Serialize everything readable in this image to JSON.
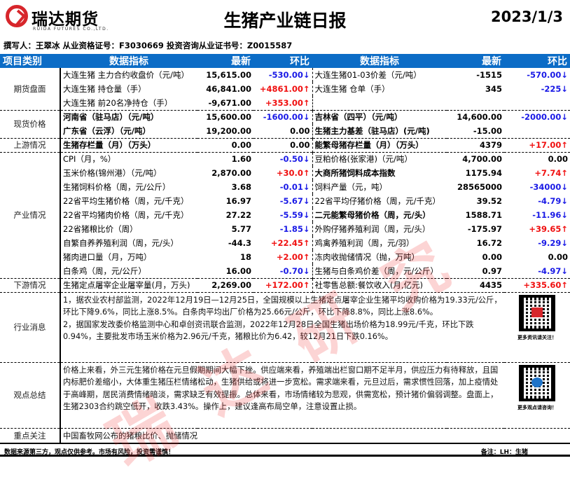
{
  "header": {
    "brand": "瑞达期货",
    "brand_en": "RUIDA FUTURES CO.,LTD.",
    "title": "生猪产业链日报",
    "date": "2023/1/3",
    "author": "撰写人：王翠冰  从业资格证号：F3030669   投资咨询从业证书号：Z0015587"
  },
  "columns": [
    "项目类别",
    "数据指标",
    "最新",
    "环比",
    "数据指标",
    "最新",
    "环比"
  ],
  "colors": {
    "header_bg": "#0c6cc6",
    "up": "#f01010",
    "down": "#1a1ae6",
    "brand": "#d7262b"
  },
  "sections": [
    {
      "category": "期货盘面",
      "rows": [
        {
          "l": {
            "name": "大连生猪 主力合约收盘价（元/吨）",
            "latest": "15,615.00",
            "change": "-530.00↓",
            "dir": "down"
          },
          "r": {
            "name": "大连生猪01-03价差（元/吨）",
            "latest": "-1515",
            "change": "-570.00↓",
            "dir": "down"
          }
        },
        {
          "l": {
            "name": "大连生猪 持仓量（手）",
            "latest": "46,841.00",
            "change": "+4861.00↑",
            "dir": "up"
          },
          "r": {
            "name": "大连生猪 仓单（手）",
            "latest": "345",
            "change": "-225↓",
            "dir": "down"
          }
        },
        {
          "l": {
            "name": "大连生猪 前20名净持仓（手）",
            "latest": "-9,671.00",
            "change": "+353.00↑",
            "dir": "up"
          },
          "r": {
            "name": "",
            "latest": "",
            "change": "",
            "dir": "flat"
          }
        }
      ]
    },
    {
      "category": "现货价格",
      "rows": [
        {
          "l": {
            "name": "河南省（驻马店）（元/吨）",
            "latest": "15,600.00",
            "change": "-1600.00↓",
            "dir": "down",
            "bold": true
          },
          "r": {
            "name": "吉林省（四平）（元/吨）",
            "latest": "14,600.00",
            "change": "-2000.00↓",
            "dir": "down",
            "bold": true
          }
        },
        {
          "l": {
            "name": "广东省（云浮）（元/吨）",
            "latest": "19,200.00",
            "change": "0.00",
            "dir": "flat",
            "bold": true
          },
          "r": {
            "name": "生猪主力基差（驻马店）(元/吨)",
            "latest": "-15.00",
            "change": "",
            "dir": "flat",
            "bold": true
          }
        }
      ]
    },
    {
      "category": "上游情况",
      "rows": [
        {
          "l": {
            "name": "生猪存栏量（月）（万头）",
            "latest": "0.00",
            "change": "0.00",
            "dir": "flat",
            "bold": true
          },
          "r": {
            "name": "能繁母猪存栏量（月）（万头）",
            "latest": "4379",
            "change": "+17.00↑",
            "dir": "up",
            "bold": true
          }
        }
      ]
    },
    {
      "category": "产业情况",
      "rows": [
        {
          "l": {
            "name": "CPI（月，%）",
            "latest": "1.60",
            "change": "-0.50↓",
            "dir": "down"
          },
          "r": {
            "name": "豆粕价格(张家港)（元/吨）",
            "latest": "4,700.00",
            "change": "0.00",
            "dir": "flat"
          }
        },
        {
          "l": {
            "name": "玉米价格(锦州港）（元/吨）",
            "latest": "2,870.00",
            "change": "+30.0↑",
            "dir": "up"
          },
          "r": {
            "name": "大商所猪饲料成本指数",
            "latest": "1175.94",
            "change": "+7.74↑",
            "dir": "up",
            "bold": true
          }
        },
        {
          "l": {
            "name": "生猪饲料价格（周，元/公斤）",
            "latest": "3.68",
            "change": "-0.01↓",
            "dir": "down"
          },
          "r": {
            "name": "饲料产量（元，吨）",
            "latest": "28565000",
            "change": "-34000↓",
            "dir": "down"
          }
        },
        {
          "l": {
            "name": "22省平均生猪价格（周，元/千克）",
            "latest": "16.97",
            "change": "-5.67↓",
            "dir": "down"
          },
          "r": {
            "name": "22省平均仔猪价格（周，元/千克）",
            "latest": "39.52",
            "change": "-4.79↓",
            "dir": "down"
          }
        },
        {
          "l": {
            "name": "22省平均猪肉价格（周，元/千克）",
            "latest": "27.22",
            "change": "-5.59↓",
            "dir": "down"
          },
          "r": {
            "name": "二元能繁母猪价格（周，元/头）",
            "latest": "1588.71",
            "change": "-11.96↓",
            "dir": "down",
            "bold": true
          }
        },
        {
          "l": {
            "name": "22省猪粮比价（周）",
            "latest": "5.77",
            "change": "-1.85↓",
            "dir": "down"
          },
          "r": {
            "name": "外购仔猪养殖利润（周，元/头）",
            "latest": "-175.97",
            "change": "+39.65↑",
            "dir": "up"
          }
        },
        {
          "l": {
            "name": "自繁自养养殖利润（周，元/头）",
            "latest": "-44.3",
            "change": "+22.45↑",
            "dir": "up"
          },
          "r": {
            "name": "鸡禽养殖利润（周，元/羽）",
            "latest": "16.72",
            "change": "-9.29↓",
            "dir": "down"
          }
        },
        {
          "l": {
            "name": "猪肉进口量（月，万吨）",
            "latest": "18",
            "change": "+2.00↑",
            "dir": "up"
          },
          "r": {
            "name": "冻肉收抛储情况（抛，万吨）",
            "latest": "0.00",
            "change": "0.00",
            "dir": "flat"
          }
        },
        {
          "l": {
            "name": "白条鸡（周，元/公斤）",
            "latest": "16.00",
            "change": "-0.70↓",
            "dir": "down"
          },
          "r": {
            "name": "生猪与白条鸡价差（周，元/公斤）",
            "latest": "0.97",
            "change": "-4.97↓",
            "dir": "down"
          }
        }
      ]
    },
    {
      "category": "下游情况",
      "rows": [
        {
          "l": {
            "name": "生猪定点屠宰企业屠宰量(月，万头)",
            "latest": "2,269.00",
            "change": "+172.00↑",
            "dir": "up"
          },
          "r": {
            "name": "社零售总额:餐饮收入(月,亿元)",
            "latest": "4435",
            "change": "+335.60↑",
            "dir": "up"
          }
        }
      ]
    }
  ],
  "news": {
    "category": "行业消息",
    "text": "1，据农业农村部监测，2022年12月19日—12月25日，全国规模以上生猪定点屠宰企业生猪平均收购价格为19.33元/公斤，环比下降9.6%，同比上涨8.5%。白条肉平均出厂价格为25.66元/公斤，环比下降8.8%，同比上涨8.6%。\n2，据国家发改委价格监测中心和卓创资讯联合监测，2022年12月28日全国生猪出场价格为18.99元/千克，环比下跌0.94%，主要批发市场玉米价格为2.96元/千克，猪粮比价为6.42，较12月21日下跌0.16%。",
    "qr_caption": "更多资讯请关注！"
  },
  "view": {
    "category": "观点总结",
    "text": "价格上来看，外三元生猪价格在元旦假期期间大幅下挫。供应端来看，养殖端出栏窗口期不足半月，供应压力有待释放，且国内标肥价差缩小，大体重生猪压栏情绪松动，生猪供给或将进一步宽松。需求端来看，元旦过后，需求惯性回落，加上疫情处于高峰期，居民消费情绪暗淡，需求缺乏有效提振。总体来看，市场情绪较为悲观，供需宽松，预计猪价偏弱调整。盘面上，生猪2303合约跳空低开，收跌3.43%。操作上，建议逢高布局空单，注意设置止损。",
    "qr_caption": "更多观点请咨询！"
  },
  "focus": {
    "category": "重点关注",
    "text": "中国畜牧网公布的猪粮比价、抛储情况"
  },
  "footer": {
    "disclaimer": "数据来源第三方，观点仅供参考。市场有风险，投资需谨慎！",
    "note": "备注：LH：生猪"
  },
  "watermark": "瑞达研究"
}
